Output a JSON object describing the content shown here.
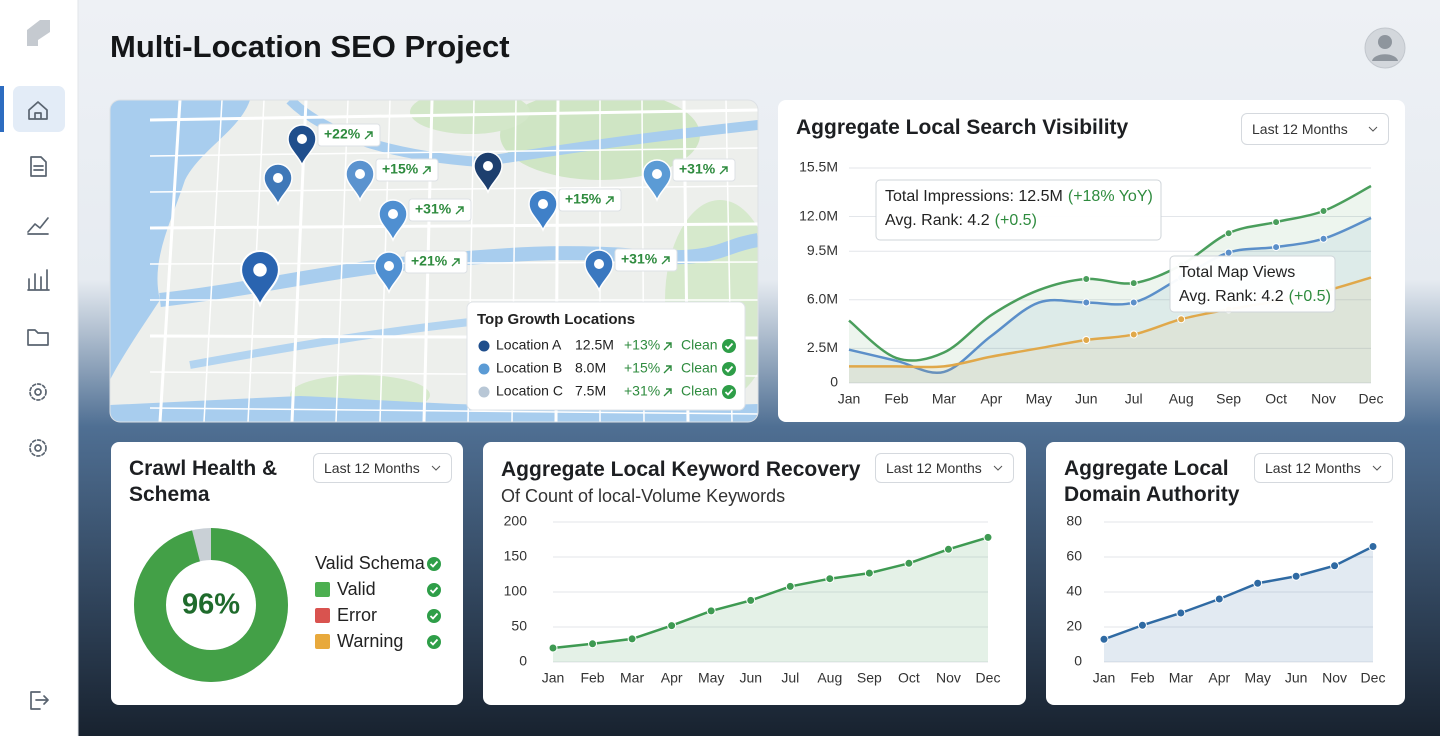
{
  "header": {
    "title": "Multi-Location SEO Project"
  },
  "map": {
    "pins": [
      "+22%",
      "+15%",
      "+31%",
      "+21%",
      "+15%",
      "+31%",
      "+31%"
    ],
    "legend": {
      "title": "Top Growth Locations",
      "rows": [
        {
          "name": "Location A",
          "value": "12.5M",
          "growth": "+13%",
          "status": "Clean"
        },
        {
          "name": "Location B",
          "value": "8.0M",
          "growth": "+15%",
          "status": "Clean"
        },
        {
          "name": "Location C",
          "value": "7.5M",
          "growth": "+31%",
          "status": "Clean"
        }
      ]
    }
  },
  "chart_data": [
    {
      "type": "line",
      "title": "Aggregate Local Search Visibility",
      "dropdown": "Last 12 Months",
      "categories": [
        "Jan",
        "Feb",
        "Mar",
        "Apr",
        "May",
        "Jun",
        "Jul",
        "Aug",
        "Sep",
        "Oct",
        "Nov",
        "Dec"
      ],
      "series": [
        {
          "color": "#4a9e5c",
          "values": [
            4.5,
            1.8,
            2.2,
            4.9,
            6.7,
            7.5,
            7.2,
            8.5,
            10.8,
            11.6,
            12.4,
            14.2
          ]
        },
        {
          "color": "#5b8fc9",
          "values": [
            2.4,
            1.6,
            0.8,
            3.4,
            5.8,
            5.8,
            5.8,
            7.6,
            9.4,
            9.8,
            10.4,
            11.9
          ]
        },
        {
          "color": "#e0a84a",
          "values": [
            1.2,
            1.2,
            1.2,
            1.9,
            2.5,
            3.1,
            3.5,
            4.6,
            5.3,
            5.9,
            6.6,
            7.6
          ]
        }
      ],
      "ylim": [
        0,
        15.5
      ],
      "yticks": [
        0,
        {
          "value": 2.5,
          "label": "2.5M"
        },
        {
          "value": 6,
          "label": "6.0M"
        },
        {
          "value": 9.5,
          "label": "9.5M"
        },
        {
          "value": 12,
          "label": "12.0M"
        },
        {
          "value": 15.5,
          "label": "15.5M"
        }
      ],
      "grid": true,
      "annotations": [
        {
          "lines": [
            {
              "text": "Total Impressions: 12.5M",
              "note": "(+18% YoY)"
            },
            {
              "text": "Avg. Rank: 4.2",
              "note": "(+0.5)"
            }
          ]
        },
        {
          "lines": [
            {
              "text": "Total Map Views"
            },
            {
              "text": "Avg. Rank: 4.2",
              "note": "(+0.5)"
            }
          ]
        }
      ]
    },
    {
      "type": "donut",
      "title": "Crawl Health & Schema",
      "dropdown": "Last 12 Months",
      "values": [
        96
      ],
      "value_labels": [
        "96%"
      ],
      "color": "#43a047",
      "legend": {
        "title": "Valid Schema",
        "items": [
          {
            "name": "Valid",
            "color": "#4caf50"
          },
          {
            "name": "Error",
            "color": "#d9534f"
          },
          {
            "name": "Warning",
            "color": "#e8a93c"
          }
        ]
      }
    },
    {
      "type": "line",
      "title": "Aggregate Local Keyword Recovery",
      "subtitle": "Of Count of local-Volume Keywords",
      "dropdown": "Last 12 Months",
      "categories": [
        "Jan",
        "Feb",
        "Mar",
        "Apr",
        "May",
        "Jun",
        "Jul",
        "Aug",
        "Sep",
        "Oct",
        "Nov",
        "Dec"
      ],
      "values": [
        20,
        26,
        33,
        52,
        73,
        88,
        108,
        119,
        127,
        141,
        161,
        178
      ],
      "color": "#3e9a52",
      "ylim": [
        0,
        200
      ],
      "yticks": [
        0,
        50,
        100,
        150,
        200
      ],
      "grid": true
    },
    {
      "type": "line",
      "title": "Aggregate Local Domain Authority",
      "dropdown": "Last 12 Months",
      "categories": [
        "Jan",
        "Feb",
        "Mar",
        "Apr",
        "May",
        "Jun",
        "Nov",
        "Dec"
      ],
      "values": [
        13,
        21,
        28,
        36,
        45,
        49,
        55,
        66
      ],
      "color": "#2f6aa3",
      "ylim": [
        0,
        80
      ],
      "yticks": [
        0,
        20,
        40,
        60,
        80
      ],
      "grid": true
    }
  ]
}
